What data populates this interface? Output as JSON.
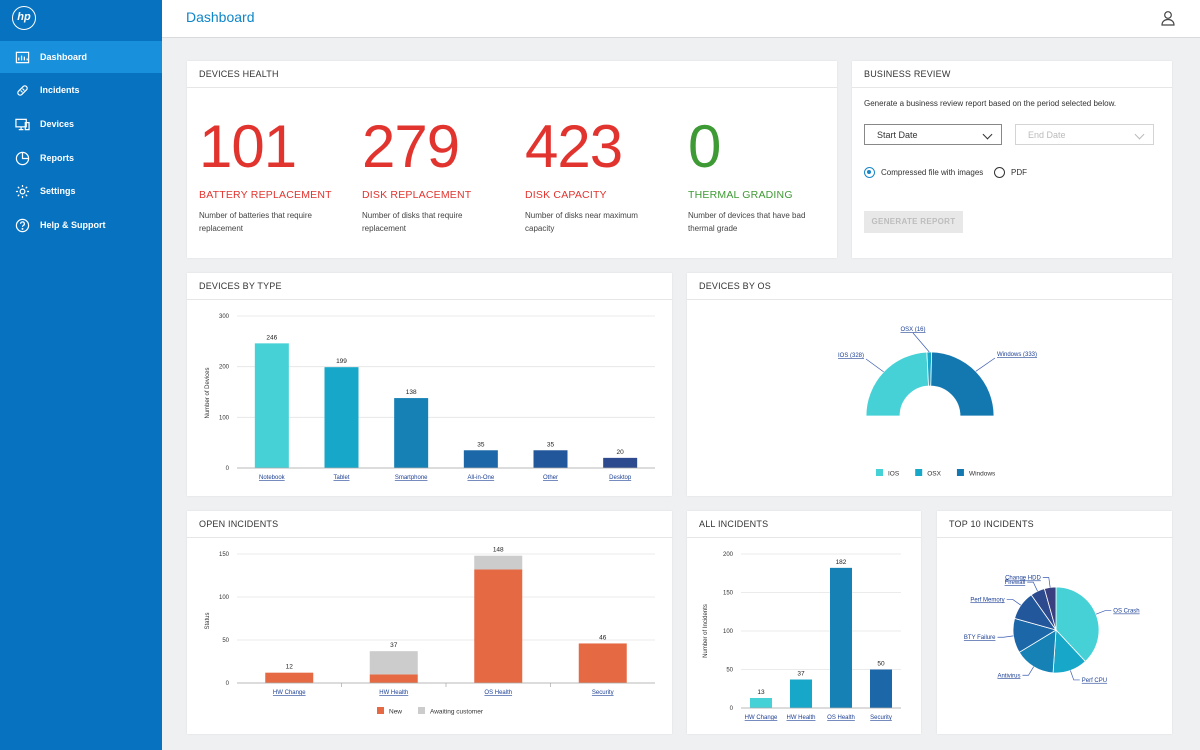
{
  "app": {
    "logo_text": "hp"
  },
  "header": {
    "title": "Dashboard"
  },
  "sidebar": {
    "items": [
      {
        "label": "Dashboard",
        "icon": "dashboard-icon",
        "active": true
      },
      {
        "label": "Incidents",
        "icon": "incidents-icon",
        "active": false
      },
      {
        "label": "Devices",
        "icon": "devices-icon",
        "active": false
      },
      {
        "label": "Reports",
        "icon": "reports-icon",
        "active": false
      },
      {
        "label": "Settings",
        "icon": "settings-icon",
        "active": false
      },
      {
        "label": "Help & Support",
        "icon": "help-icon",
        "active": false
      }
    ]
  },
  "devices_health": {
    "title": "DEVICES HEALTH",
    "stats": [
      {
        "value": "101",
        "label": "BATTERY REPLACEMENT",
        "desc": "Number of batteries that require replacement",
        "color": "#e2342f"
      },
      {
        "value": "279",
        "label": "DISK REPLACEMENT",
        "desc": "Number of disks that require replacement",
        "color": "#e2342f"
      },
      {
        "value": "423",
        "label": "DISK CAPACITY",
        "desc": "Number of disks near maximum capacity",
        "color": "#e2342f"
      },
      {
        "value": "0",
        "label": "THERMAL GRADING",
        "desc": "Number of devices that have bad thermal grade",
        "color": "#3e9a34"
      }
    ]
  },
  "business_review": {
    "title": "BUSINESS REVIEW",
    "description": "Generate a business review report based on the period selected below.",
    "start_date": "Start Date",
    "end_date": "End Date",
    "option_compressed": "Compressed file with images",
    "option_pdf": "PDF",
    "generate_label": "GENERATE REPORT"
  },
  "devices_by_type": {
    "title": "DEVICES BY TYPE",
    "chart_data": {
      "type": "bar",
      "categories": [
        "Notebook",
        "Tablet",
        "Smartphone",
        "All-in-One",
        "Other",
        "Desktop"
      ],
      "values": [
        246,
        199,
        138,
        35,
        35,
        20
      ],
      "ylabel": "Number of Devices",
      "ylim": [
        0,
        300
      ],
      "yticks": [
        0,
        100,
        200,
        300
      ],
      "colors": [
        "#45d1d6",
        "#17a7c9",
        "#1681b5",
        "#1c67a8",
        "#23579c",
        "#2d4a8e"
      ]
    }
  },
  "devices_by_os": {
    "title": "DEVICES BY OS",
    "chart_data": {
      "type": "pie",
      "variant": "half-donut",
      "labels": [
        "IOS",
        "OSX",
        "Windows"
      ],
      "values": [
        328,
        16,
        333
      ],
      "callouts": [
        "IOS (328)",
        "OSX (16)",
        "Windows (333)"
      ],
      "colors": [
        "#45d1d6",
        "#17a7c9",
        "#1478b0"
      ],
      "legend": "bottom"
    }
  },
  "open_incidents": {
    "title": "OPEN INCIDENTS",
    "chart_data": {
      "type": "bar",
      "stacked": true,
      "categories": [
        "HW Change",
        "HW Health",
        "OS Health",
        "Security"
      ],
      "series": [
        {
          "name": "New",
          "values": [
            12,
            10,
            132,
            46
          ],
          "color": "#e56a43"
        },
        {
          "name": "Awaiting customer",
          "values": [
            0,
            27,
            16,
            0
          ],
          "color": "#cccccc"
        }
      ],
      "totals": [
        12,
        37,
        148,
        46
      ],
      "ylabel": "Status",
      "ylim": [
        0,
        150
      ],
      "yticks": [
        0,
        50,
        100,
        150
      ],
      "legend": "bottom"
    }
  },
  "all_incidents": {
    "title": "ALL INCIDENTS",
    "chart_data": {
      "type": "bar",
      "categories": [
        "HW Change",
        "HW Health",
        "OS Health",
        "Security"
      ],
      "values": [
        13,
        37,
        182,
        50
      ],
      "ylabel": "Number of Incidents",
      "ylim": [
        0,
        200
      ],
      "yticks": [
        0,
        50,
        100,
        150,
        200
      ],
      "colors": [
        "#45d1d6",
        "#17a7c9",
        "#1681b5",
        "#1c67a8"
      ]
    }
  },
  "top_incidents": {
    "title": "TOP 10 INCIDENTS",
    "chart_data": {
      "type": "pie",
      "labels": [
        "OS Crash",
        "Perf CPU",
        "Antivirus",
        "BTY Failure",
        "Perf Memory",
        "Firewall",
        "Change HDD"
      ],
      "values": [
        35,
        12,
        14,
        12,
        10,
        5,
        4
      ],
      "colors": [
        "#45d1d6",
        "#17a7c9",
        "#1681b5",
        "#1c67a8",
        "#23579c",
        "#2d4a8e",
        "#3a3f7f"
      ]
    }
  }
}
